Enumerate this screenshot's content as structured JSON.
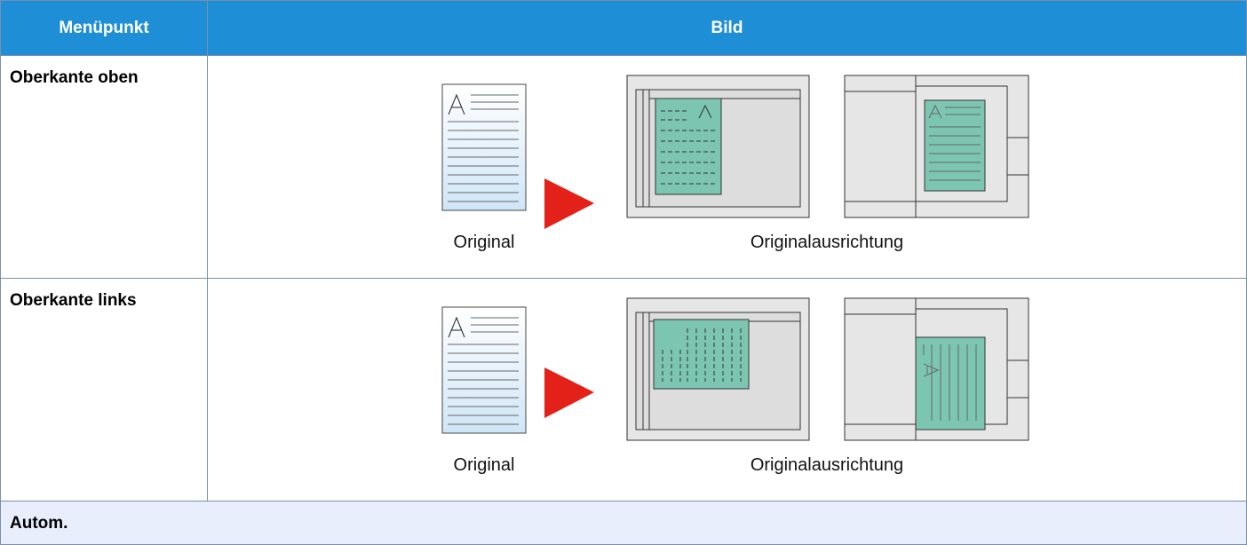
{
  "table": {
    "header": [
      "Menüpunkt",
      "Bild"
    ],
    "rows": [
      {
        "label": "Oberkante oben",
        "captions": [
          "Original",
          "Originalausrichtung"
        ]
      },
      {
        "label": "Oberkante links",
        "captions": [
          "Original",
          "Originalausrichtung"
        ]
      },
      {
        "label": "Autom."
      }
    ]
  }
}
